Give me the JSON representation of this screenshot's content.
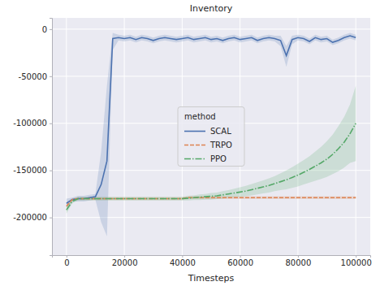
{
  "chart_data": {
    "type": "line",
    "title": "Inventory",
    "x_label": "Timesteps",
    "legend_title": "method",
    "legend": "center",
    "grid": true,
    "xlim": [
      -5000,
      105000
    ],
    "ylim": [
      -240000,
      12000
    ],
    "xticks": [
      0,
      20000,
      40000,
      60000,
      80000,
      100000
    ],
    "yticks": [
      -200000,
      -150000,
      -100000,
      -50000,
      0
    ],
    "x": [
      0,
      2000,
      4000,
      6000,
      8000,
      10000,
      12000,
      14000,
      16000,
      18000,
      20000,
      22000,
      24000,
      26000,
      28000,
      30000,
      32000,
      34000,
      36000,
      38000,
      40000,
      42000,
      44000,
      46000,
      48000,
      50000,
      52000,
      54000,
      56000,
      58000,
      60000,
      62000,
      64000,
      66000,
      68000,
      70000,
      72000,
      74000,
      76000,
      78000,
      80000,
      82000,
      84000,
      86000,
      88000,
      90000,
      92000,
      94000,
      96000,
      98000,
      100000
    ],
    "series": [
      {
        "name": "SCAL",
        "color": "#4c72b0",
        "line_style": "solid",
        "values": [
          -185000,
          -181000,
          -180000,
          -180000,
          -179000,
          -178000,
          -165000,
          -140000,
          -10000,
          -9000,
          -10000,
          -9000,
          -11000,
          -9000,
          -10000,
          -12000,
          -10000,
          -9000,
          -10000,
          -11000,
          -10000,
          -9000,
          -11000,
          -10000,
          -9000,
          -11000,
          -10000,
          -12000,
          -10000,
          -9000,
          -11000,
          -10000,
          -9000,
          -12000,
          -10000,
          -9000,
          -10000,
          -12000,
          -28000,
          -11000,
          -9000,
          -10000,
          -13000,
          -9000,
          -11000,
          -10000,
          -14000,
          -12000,
          -9000,
          -7000,
          -9000
        ],
        "lower": [
          -190000,
          -183000,
          -183000,
          -183000,
          -182000,
          -181000,
          -205000,
          -220000,
          -22000,
          -12000,
          -13000,
          -12000,
          -14000,
          -12000,
          -13000,
          -15000,
          -13000,
          -12000,
          -13000,
          -14000,
          -13000,
          -12000,
          -14000,
          -13000,
          -12000,
          -14000,
          -13000,
          -15000,
          -13000,
          -12000,
          -14000,
          -13000,
          -12000,
          -15000,
          -13000,
          -12000,
          -13000,
          -18000,
          -40000,
          -16000,
          -12000,
          -13000,
          -16000,
          -12000,
          -14000,
          -13000,
          -17000,
          -15000,
          -12000,
          -10000,
          -12000
        ],
        "upper": [
          -180000,
          -179000,
          -177000,
          -177000,
          -176000,
          -175000,
          -130000,
          -60000,
          -4000,
          -6000,
          -7000,
          -6000,
          -8000,
          -6000,
          -7000,
          -9000,
          -7000,
          -6000,
          -7000,
          -8000,
          -7000,
          -6000,
          -8000,
          -7000,
          -6000,
          -8000,
          -7000,
          -9000,
          -7000,
          -6000,
          -8000,
          -7000,
          -6000,
          -9000,
          -7000,
          -6000,
          -7000,
          -7000,
          -18000,
          -7000,
          -6000,
          -7000,
          -10000,
          -6000,
          -8000,
          -7000,
          -11000,
          -9000,
          -6000,
          -4000,
          -6000
        ]
      },
      {
        "name": "TRPO",
        "color": "#dd8452",
        "line_style": "dashed",
        "values": [
          -188000,
          -181000,
          -180000,
          -180000,
          -180000,
          -180000,
          -180000,
          -180000,
          -180000,
          -180000,
          -180000,
          -180000,
          -180000,
          -180000,
          -180000,
          -180000,
          -180000,
          -180000,
          -180000,
          -180000,
          -180000,
          -179000,
          -179000,
          -179000,
          -179000,
          -179000,
          -179000,
          -179000,
          -179000,
          -179000,
          -179000,
          -179000,
          -179000,
          -179000,
          -179000,
          -179000,
          -179000,
          -179000,
          -179000,
          -179000,
          -179000,
          -179000,
          -179000,
          -179000,
          -179000,
          -179000,
          -179000,
          -179000,
          -179000,
          -179000,
          -179000
        ],
        "lower": [
          -190000,
          -182500,
          -181500,
          -181500,
          -181500,
          -181500,
          -181500,
          -181500,
          -181500,
          -181500,
          -181500,
          -181500,
          -181500,
          -181500,
          -181500,
          -181500,
          -181500,
          -181500,
          -181500,
          -181500,
          -181500,
          -180500,
          -180500,
          -180500,
          -180500,
          -180500,
          -180500,
          -180500,
          -180500,
          -180500,
          -180500,
          -180500,
          -180500,
          -180500,
          -180500,
          -180500,
          -180500,
          -180500,
          -180500,
          -180500,
          -180500,
          -180500,
          -180500,
          -180500,
          -180500,
          -180500,
          -180500,
          -180500,
          -180500,
          -180500,
          -180500
        ],
        "upper": [
          -186000,
          -179500,
          -178500,
          -178500,
          -178500,
          -178500,
          -178500,
          -178500,
          -178500,
          -178500,
          -178500,
          -178500,
          -178500,
          -178500,
          -178500,
          -178500,
          -178500,
          -178500,
          -178500,
          -178500,
          -178500,
          -177500,
          -177500,
          -177500,
          -177500,
          -177500,
          -177500,
          -177500,
          -177500,
          -177500,
          -177500,
          -177500,
          -177500,
          -177500,
          -177500,
          -177500,
          -177500,
          -177500,
          -177500,
          -177500,
          -177500,
          -177500,
          -177500,
          -177500,
          -177500,
          -177500,
          -177500,
          -177500,
          -177500,
          -177500,
          -177500
        ]
      },
      {
        "name": "PPO",
        "color": "#55a868",
        "line_style": "dashdot",
        "values": [
          -192000,
          -183000,
          -180000,
          -180000,
          -180000,
          -180000,
          -180000,
          -180000,
          -180000,
          -180000,
          -180000,
          -180000,
          -180000,
          -180000,
          -180000,
          -180000,
          -180000,
          -180000,
          -180000,
          -180000,
          -180000,
          -179500,
          -179000,
          -178500,
          -178000,
          -177500,
          -177000,
          -176000,
          -175000,
          -174000,
          -173000,
          -172000,
          -170500,
          -169000,
          -167500,
          -166000,
          -164000,
          -162000,
          -160000,
          -157500,
          -155000,
          -152000,
          -149000,
          -145500,
          -142000,
          -138000,
          -133000,
          -127000,
          -120000,
          -111000,
          -100000
        ],
        "lower": [
          -196000,
          -185000,
          -182000,
          -182000,
          -182000,
          -182000,
          -182000,
          -182000,
          -182000,
          -182000,
          -182000,
          -182000,
          -182000,
          -182000,
          -182000,
          -182000,
          -182000,
          -182000,
          -182000,
          -182000,
          -182000,
          -182000,
          -181500,
          -181500,
          -181000,
          -181000,
          -180500,
          -180000,
          -179000,
          -178500,
          -178000,
          -177500,
          -176500,
          -175500,
          -174500,
          -173500,
          -172000,
          -171000,
          -170000,
          -168500,
          -167000,
          -165000,
          -163000,
          -161000,
          -159000,
          -157000,
          -154000,
          -151000,
          -147000,
          -142000,
          -140000
        ],
        "upper": [
          -188000,
          -181000,
          -178000,
          -178000,
          -178000,
          -178000,
          -178000,
          -178000,
          -178000,
          -178000,
          -178000,
          -178000,
          -178000,
          -178000,
          -178000,
          -178000,
          -178000,
          -178000,
          -178000,
          -178000,
          -178000,
          -177000,
          -176500,
          -175500,
          -175000,
          -174000,
          -173500,
          -172000,
          -171000,
          -169500,
          -168000,
          -166500,
          -164500,
          -162500,
          -160500,
          -158500,
          -156000,
          -153000,
          -150000,
          -146500,
          -143000,
          -139000,
          -135000,
          -130000,
          -125000,
          -119000,
          -112000,
          -103000,
          -93000,
          -80000,
          -60000
        ]
      }
    ]
  }
}
